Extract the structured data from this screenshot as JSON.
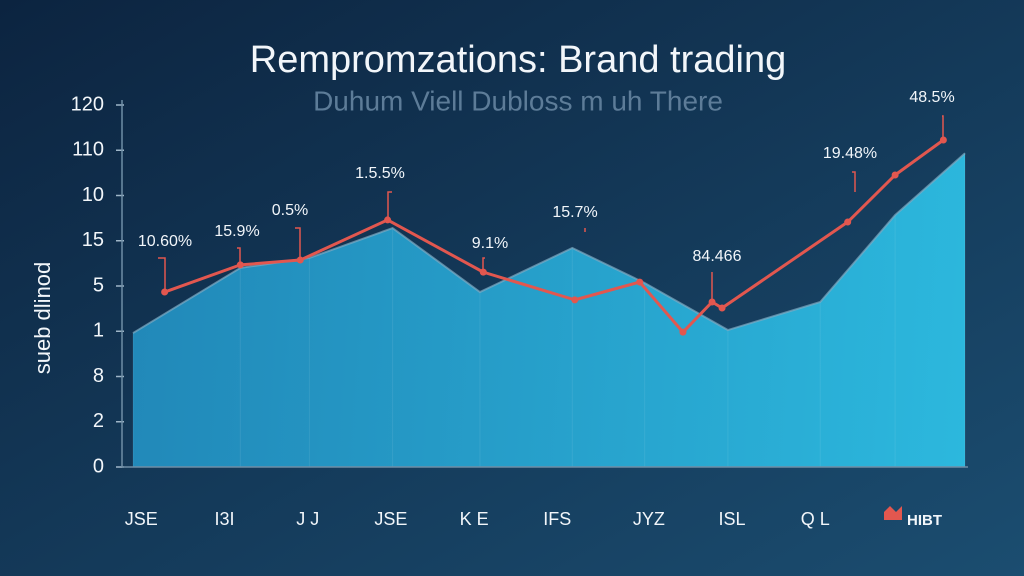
{
  "chart_data": {
    "type": "area-line",
    "title": "Rempromzations: Brand trading",
    "subtitle": "Duhum Viell Dubloss m uh There",
    "y_label": "sueb dlinod",
    "xlim": [
      0,
      10
    ],
    "xticks": [
      {
        "value": 0.1,
        "label": "JSE"
      },
      {
        "value": 1.1,
        "label": "I3I"
      },
      {
        "value": 2.1,
        "label": "J J"
      },
      {
        "value": 3.1,
        "label": "JSE"
      },
      {
        "value": 4.1,
        "label": "K E"
      },
      {
        "value": 5.1,
        "label": "IFS"
      },
      {
        "value": 6.2,
        "label": "JYZ"
      },
      {
        "value": 7.2,
        "label": "ISL"
      },
      {
        "value": 8.2,
        "label": "Q L"
      }
    ],
    "ylim": [
      0,
      120
    ],
    "yticks": [
      0,
      {
        "value": 15,
        "label": "2"
      },
      {
        "value": 30,
        "label": "8"
      },
      {
        "value": 45,
        "label": "1"
      },
      {
        "value": 60,
        "label": "5"
      },
      {
        "value": 75,
        "label": "15"
      },
      {
        "value": 90,
        "label": "10"
      },
      {
        "value": 105,
        "label": "110"
      },
      120
    ],
    "series": [
      {
        "kind": "area",
        "color": "#2ab4de",
        "x": [
          0,
          1.29,
          2.12,
          3.12,
          4.17,
          5.28,
          6.15,
          7.15,
          8.26,
          9.16,
          10
        ],
        "values": [
          44.4,
          66,
          69.3,
          79.2,
          58,
          72.6,
          61,
          45.4,
          54.7,
          83.5,
          104
        ]
      },
      {
        "kind": "line",
        "color": "#e2574f",
        "x": [
          0.38,
          1.29,
          2.01,
          3.06,
          4.21,
          5.31,
          6.09,
          6.61,
          6.96,
          7.08,
          8.59,
          9.16,
          9.74
        ],
        "values": [
          58,
          67,
          68.6,
          81.9,
          64.6,
          55.4,
          61.3,
          44.7,
          54.7,
          52.7,
          81.2,
          96.8,
          108.4
        ]
      }
    ],
    "annotations": [
      "10.60%",
      "15.9%",
      "0.5%",
      "1.5.5%",
      "9.1%",
      "15.7%",
      "84.466",
      "19.48%",
      "48.5%"
    ],
    "legend": "HIBT"
  }
}
